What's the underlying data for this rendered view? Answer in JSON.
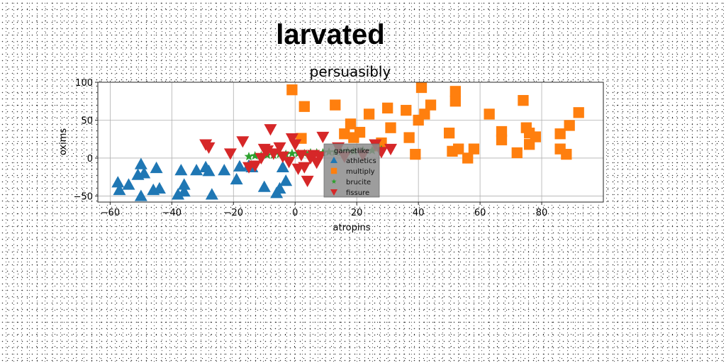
{
  "chart_data": {
    "type": "scatter",
    "suptitle": "larvated",
    "title": "persuasibly",
    "xlabel": "atropins",
    "ylabel": "oxims",
    "xlim": [
      -64,
      100
    ],
    "ylim": [
      -58,
      100
    ],
    "xticks": [
      -60,
      -40,
      -20,
      0,
      20,
      40,
      60,
      80
    ],
    "yticks": [
      -50,
      0,
      50,
      100
    ],
    "grid": true,
    "legend": {
      "title": "garnetlike",
      "placement": "center"
    },
    "series": [
      {
        "name": "athletics",
        "color": "#1f77b4",
        "marker": "triangle-up",
        "points": [
          [
            -57.5,
            -32
          ],
          [
            -57,
            -42
          ],
          [
            -54,
            -35
          ],
          [
            -50,
            -8
          ],
          [
            -51,
            -22
          ],
          [
            -49,
            -20
          ],
          [
            -50,
            -50
          ],
          [
            -46,
            -42
          ],
          [
            -45,
            -13
          ],
          [
            -44,
            -40
          ],
          [
            -38,
            -48
          ],
          [
            -37,
            -16
          ],
          [
            -36,
            -35
          ],
          [
            -36,
            -44
          ],
          [
            -32,
            -16
          ],
          [
            -29,
            -12
          ],
          [
            -28,
            -17
          ],
          [
            -27,
            -48
          ],
          [
            -23,
            -16
          ],
          [
            -19,
            -28
          ],
          [
            -18,
            -11
          ],
          [
            -15,
            -10
          ],
          [
            -14,
            -12
          ],
          [
            -10,
            -38
          ],
          [
            -6,
            -46
          ],
          [
            -5,
            -40
          ],
          [
            -4,
            -12
          ],
          [
            -3,
            -30
          ]
        ]
      },
      {
        "name": "multiply",
        "color": "#ff7f0e",
        "marker": "square",
        "points": [
          [
            -1,
            90
          ],
          [
            2,
            26
          ],
          [
            3,
            68
          ],
          [
            13,
            70
          ],
          [
            16,
            32
          ],
          [
            18,
            45
          ],
          [
            19,
            27
          ],
          [
            21,
            34
          ],
          [
            24,
            58
          ],
          [
            27,
            16
          ],
          [
            28,
            20
          ],
          [
            30,
            66
          ],
          [
            31,
            40
          ],
          [
            36,
            63
          ],
          [
            37,
            27
          ],
          [
            39,
            5
          ],
          [
            40,
            50
          ],
          [
            41,
            93
          ],
          [
            42,
            58
          ],
          [
            44,
            70
          ],
          [
            50,
            33
          ],
          [
            51,
            9
          ],
          [
            52,
            88
          ],
          [
            52,
            75
          ],
          [
            53,
            12
          ],
          [
            56,
            0
          ],
          [
            58,
            12
          ],
          [
            63,
            58
          ],
          [
            67,
            35
          ],
          [
            67,
            24
          ],
          [
            72,
            7
          ],
          [
            74,
            76
          ],
          [
            75,
            40
          ],
          [
            76,
            18
          ],
          [
            76,
            33
          ],
          [
            78,
            28
          ],
          [
            86,
            32
          ],
          [
            86,
            12
          ],
          [
            88,
            5
          ],
          [
            89,
            43
          ],
          [
            92,
            60
          ]
        ]
      },
      {
        "name": "brucite",
        "color": "#2ca02c",
        "marker": "star",
        "points": [
          [
            -15,
            2
          ],
          [
            -13,
            3
          ],
          [
            -11,
            3
          ],
          [
            -9,
            4
          ],
          [
            -7,
            4
          ],
          [
            -5,
            5
          ],
          [
            -3,
            5
          ],
          [
            -1,
            6
          ],
          [
            1,
            6
          ],
          [
            3,
            6
          ],
          [
            5,
            7
          ],
          [
            7,
            7
          ],
          [
            9,
            7
          ],
          [
            11,
            8
          ],
          [
            13,
            8
          ],
          [
            15,
            8
          ],
          [
            17,
            9
          ],
          [
            19,
            9
          ],
          [
            22,
            10
          ],
          [
            25,
            10
          ],
          [
            28,
            11
          ]
        ]
      },
      {
        "name": "fissure",
        "color": "#d62728",
        "marker": "triangle-down",
        "points": [
          [
            -29,
            18
          ],
          [
            -28,
            14
          ],
          [
            -21,
            6
          ],
          [
            -17,
            22
          ],
          [
            -15,
            -12
          ],
          [
            -13,
            -10
          ],
          [
            -11,
            0
          ],
          [
            -10,
            12
          ],
          [
            -9,
            10
          ],
          [
            -8,
            38
          ],
          [
            -7,
            6
          ],
          [
            -5,
            14
          ],
          [
            -4,
            2
          ],
          [
            -2,
            -5
          ],
          [
            -1,
            26
          ],
          [
            0,
            18
          ],
          [
            1,
            -14
          ],
          [
            2,
            4
          ],
          [
            3,
            -12
          ],
          [
            4,
            -30
          ],
          [
            5,
            0
          ],
          [
            6,
            4
          ],
          [
            7,
            -6
          ],
          [
            8,
            2
          ],
          [
            9,
            28
          ],
          [
            14,
            14
          ],
          [
            16,
            2
          ],
          [
            22,
            4
          ],
          [
            26,
            18
          ],
          [
            28,
            8
          ],
          [
            31,
            12
          ]
        ]
      }
    ]
  }
}
